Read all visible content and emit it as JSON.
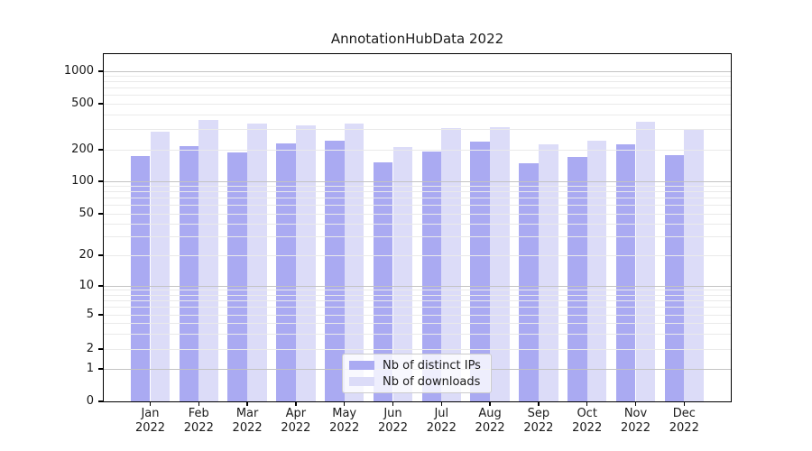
{
  "title": "AnnotationHubData 2022",
  "chart_data": {
    "type": "bar",
    "title": "AnnotationHubData 2022",
    "categories": [
      "Jan 2022",
      "Feb 2022",
      "Mar 2022",
      "Apr 2022",
      "May 2022",
      "Jun 2022",
      "Jul 2022",
      "Aug 2022",
      "Sep 2022",
      "Oct 2022",
      "Nov 2022",
      "Dec 2022"
    ],
    "series": [
      {
        "name": "Nb of distinct IPs",
        "color": "#aaaaf2",
        "values": [
          173,
          215,
          190,
          225,
          240,
          151,
          192,
          234,
          150,
          171,
          221,
          179
        ]
      },
      {
        "name": "Nb of downloads",
        "color": "#dcdcf8",
        "values": [
          288,
          360,
          335,
          325,
          335,
          213,
          310,
          314,
          224,
          241,
          350,
          299
        ]
      }
    ],
    "xlabel": "",
    "ylabel": "",
    "yscale": "symlog",
    "yticks": [
      0,
      1,
      2,
      5,
      10,
      20,
      50,
      100,
      200,
      500,
      1000
    ],
    "ylim": [
      0,
      1200
    ],
    "grid": true,
    "legend_position": "lower center"
  },
  "colors": {
    "grid_major": "#c3c3c3",
    "grid_minor": "#eaeaea",
    "frame": "#000000",
    "background": "#ffffff"
  }
}
